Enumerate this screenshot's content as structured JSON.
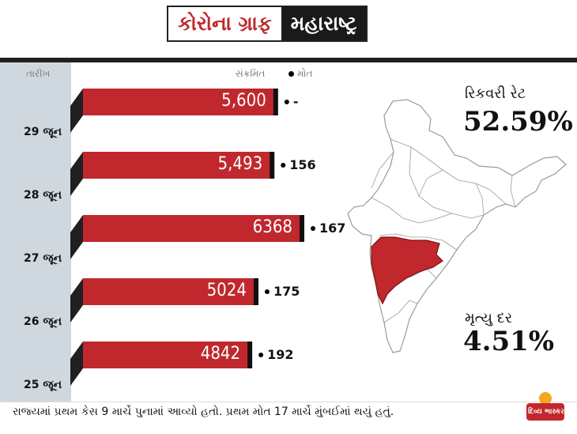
{
  "header": {
    "title": "કોરોના ગ્રાફ",
    "state": "મહારાષ્ટ્ર"
  },
  "columns": {
    "date": "તારીખ",
    "infected": "સંક્રમિત",
    "deaths": "મોત"
  },
  "rows": [
    {
      "date": "29 જૂન",
      "infected_label": "5,600",
      "deaths_label": "-"
    },
    {
      "date": "28 જૂન",
      "infected_label": "5,493",
      "deaths_label": "156"
    },
    {
      "date": "27 જૂન",
      "infected_label": "6368",
      "deaths_label": "167"
    },
    {
      "date": "26 જૂન",
      "infected_label": "5024",
      "deaths_label": "175"
    },
    {
      "date": "25 જૂન",
      "infected_label": "4842",
      "deaths_label": "192"
    }
  ],
  "stats": {
    "recovery_label": "રિકવરી રેટ",
    "recovery_value": "52.59%",
    "mortality_label": "મૃત્યુ દર",
    "mortality_value": "4.51%"
  },
  "footer": {
    "text": "રાજ્યમાં પ્રથમ કેસ 9 માર્ચે પુનામાં આવ્યો હતો. પ્રથમ મોત 17 માર્ચે મુંબઈમાં થયું હતું."
  },
  "logo": {
    "text": "દિવ્ય ભાસ્કર"
  },
  "colors": {
    "bar": "#c0282d",
    "highlight_state": "#c0282d",
    "date_column": "#cfd8df"
  },
  "chart_data": {
    "type": "bar",
    "orientation": "horizontal",
    "categories": [
      "29 જૂન",
      "28 જૂન",
      "27 જૂન",
      "26 જૂન",
      "25 જૂન"
    ],
    "series": [
      {
        "name": "સંક્રમિત",
        "values": [
          5600,
          5493,
          6368,
          5024,
          4842
        ]
      },
      {
        "name": "મોત",
        "values": [
          null,
          156,
          167,
          175,
          192
        ]
      }
    ],
    "xlim": [
      0,
      6368
    ]
  }
}
